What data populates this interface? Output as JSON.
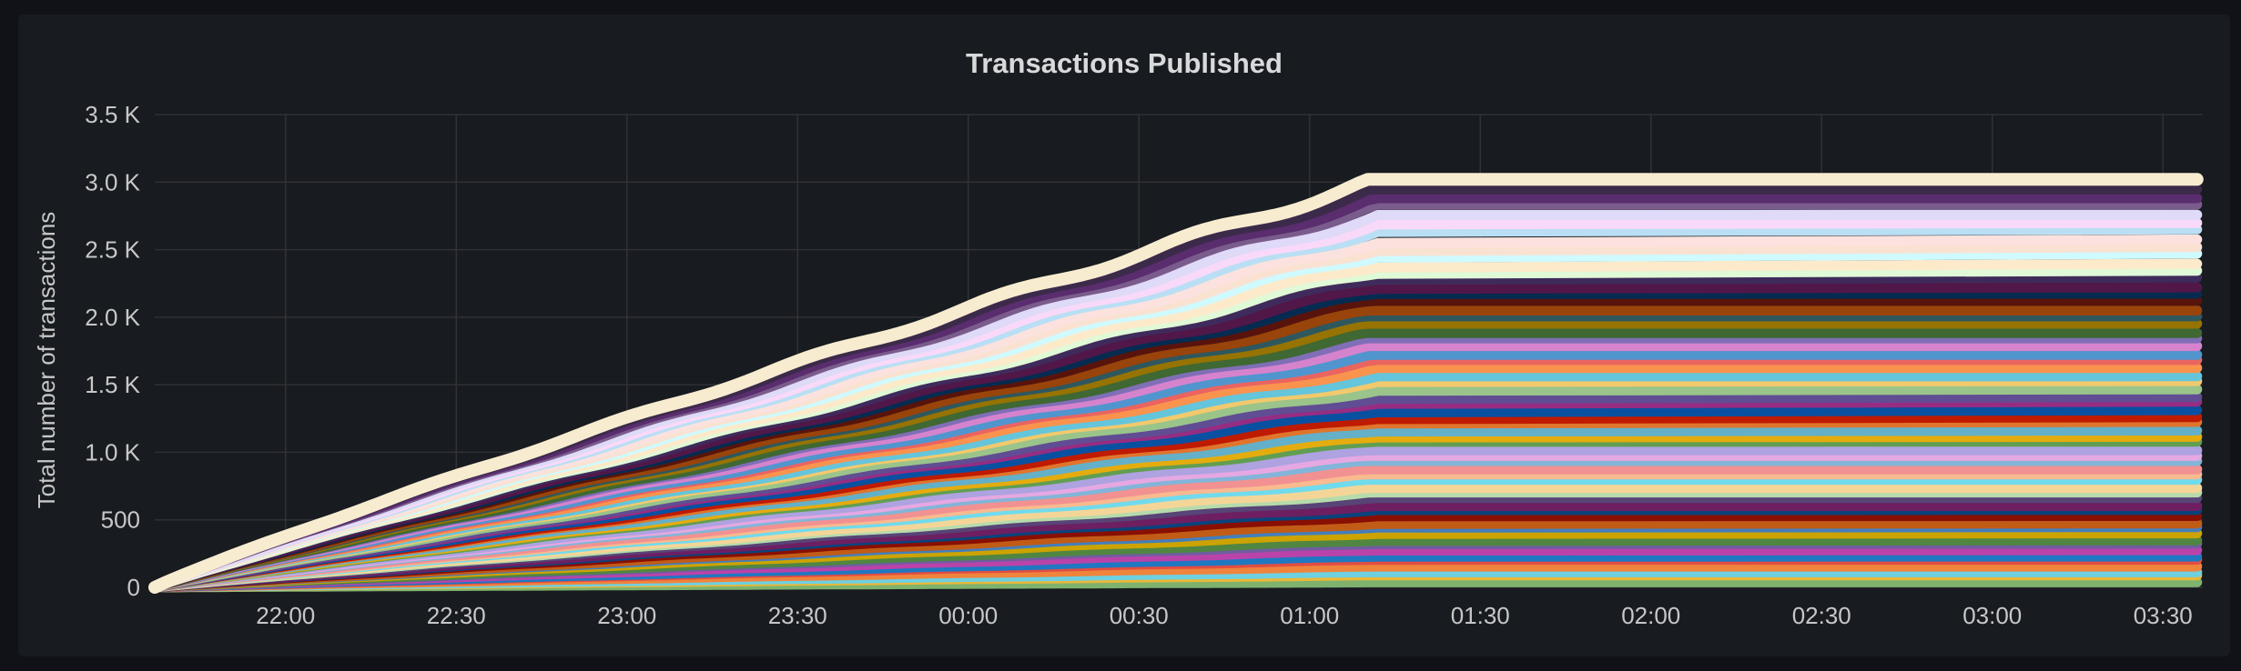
{
  "panel": {
    "title": "Transactions Published"
  },
  "chart_data": {
    "type": "area",
    "title": "Transactions Published",
    "ylabel": "Total number of transactions",
    "xlabel": "",
    "stacked": true,
    "grid": true,
    "legend": "none",
    "x_ticks": [
      "22:00",
      "22:30",
      "23:00",
      "23:30",
      "00:00",
      "00:30",
      "01:00",
      "01:30",
      "02:00",
      "02:30",
      "03:00",
      "03:30"
    ],
    "y_ticks": [
      "0",
      "500",
      "1.0 K",
      "1.5 K",
      "2.0 K",
      "2.5 K",
      "3.0 K",
      "3.5 K"
    ],
    "ylim": [
      0,
      3500
    ],
    "xlim": [
      "21:37",
      "03:37"
    ],
    "series_start": "21:37",
    "series_plateau": "01:12",
    "series_end": "03:36",
    "series_count": 60,
    "final_total": 3020,
    "series_colors": [
      "#7eb26d",
      "#eab839",
      "#6ed0e0",
      "#ef843c",
      "#e24d42",
      "#1f78c1",
      "#ba43a9",
      "#705da0",
      "#508642",
      "#cca300",
      "#447ebc",
      "#c15c17",
      "#890f02",
      "#0a437c",
      "#6d1f62",
      "#584477",
      "#b7dbab",
      "#f4d598",
      "#70dbed",
      "#f9ba8f",
      "#f29191",
      "#82b5d8",
      "#e5a8e2",
      "#aea2e0",
      "#629e51",
      "#e5ac0e",
      "#64b0c8",
      "#e0752d",
      "#bf1b00",
      "#0a50a1",
      "#962d82",
      "#614d93",
      "#9ac48a",
      "#f2c96d",
      "#65c5db",
      "#f9934e",
      "#ea6460",
      "#5195ce",
      "#d683ce",
      "#806eb7",
      "#3f6833",
      "#967302",
      "#2f575e",
      "#99440a",
      "#58140c",
      "#052b51",
      "#511749",
      "#3f2b5b",
      "#e0f9d7",
      "#fceaca",
      "#cffaff",
      "#f9e2d2",
      "#fce2de",
      "#badff4",
      "#f9d9f9",
      "#dedaf7",
      "#7a5c8c",
      "#5a2d6e",
      "#3c2a4a",
      "#f8ecd0"
    ],
    "top_series_color": "#f8ecd0"
  }
}
